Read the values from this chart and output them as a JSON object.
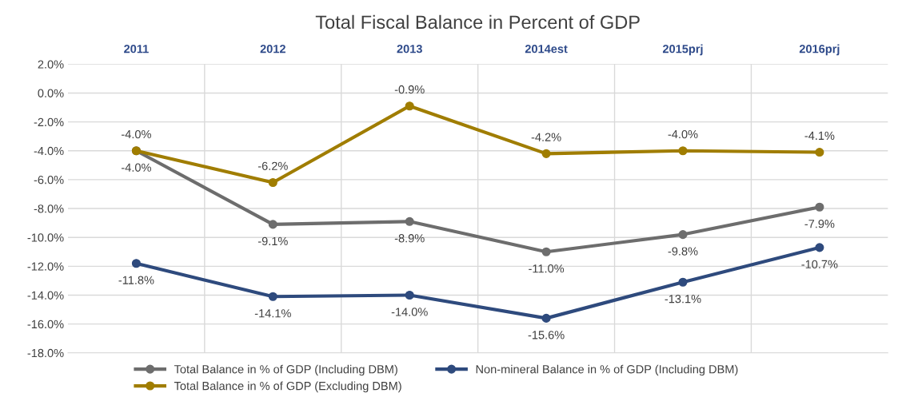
{
  "chart_data": {
    "type": "line",
    "title": "Total Fiscal Balance in Percent of GDP",
    "categories": [
      "2011",
      "2012",
      "2013",
      "2014est",
      "2015prj",
      "2016prj"
    ],
    "series": [
      {
        "name": "Total Balance in % of GDP (Including DBM)",
        "color": "#6d6d6d",
        "values": [
          -4.0,
          -9.1,
          -8.9,
          -11.0,
          -9.8,
          -7.9
        ],
        "value_labels": [
          "-4.0%",
          "-9.1%",
          "-8.9%",
          "-11.0%",
          "-9.8%",
          "-7.9%"
        ]
      },
      {
        "name": "Total Balance in % of GDP (Excluding DBM)",
        "color": "#a07d00",
        "values": [
          -4.0,
          -6.2,
          -0.9,
          -4.2,
          -4.0,
          -4.1
        ],
        "value_labels": [
          "-4.0%",
          "-6.2%",
          "-0.9%",
          "-4.2%",
          "-4.0%",
          "-4.1%"
        ]
      },
      {
        "name": "Non-mineral Balance in % of GDP (Including DBM)",
        "color": "#2e4a7d",
        "values": [
          -11.8,
          -14.1,
          -14.0,
          -15.6,
          -13.1,
          -10.7
        ],
        "value_labels": [
          "-11.8%",
          "-14.1%",
          "-14.0%",
          "-15.6%",
          "-13.1%",
          "-10.7%"
        ]
      }
    ],
    "ylim": [
      -18,
      2
    ],
    "yticks": [
      {
        "value": 2,
        "label": "2.0%"
      },
      {
        "value": 0,
        "label": "0.0%"
      },
      {
        "value": -2,
        "label": "-2.0%"
      },
      {
        "value": -4,
        "label": "-4.0%"
      },
      {
        "value": -6,
        "label": "-6.0%"
      },
      {
        "value": -8,
        "label": "-8.0%"
      },
      {
        "value": -10,
        "label": "-10.0%"
      },
      {
        "value": -12,
        "label": "-12.0%"
      },
      {
        "value": -14,
        "label": "-14.0%"
      },
      {
        "value": -16,
        "label": "-16.0%"
      },
      {
        "value": -18,
        "label": "-18.0%"
      }
    ],
    "grid": true,
    "legend": "bottom",
    "marker": "circle",
    "line_style": "solid"
  }
}
